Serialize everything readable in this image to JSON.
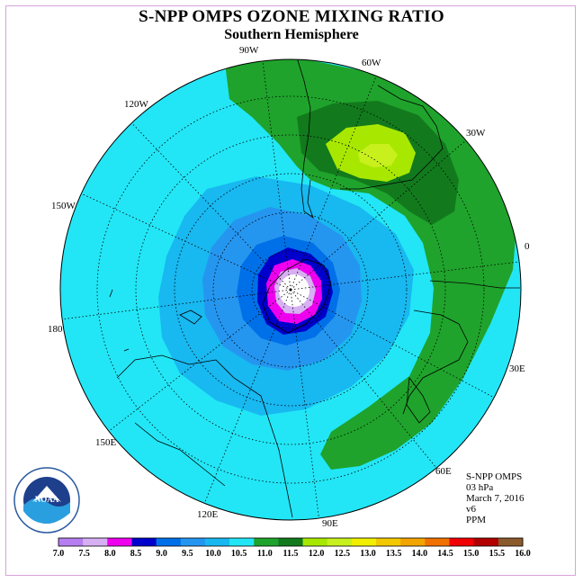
{
  "title": "S-NPP OMPS OZONE MIXING RATIO",
  "subtitle": "Southern Hemisphere",
  "meridian_labels": {
    "w90": "90W",
    "w60": "60W",
    "w30": "30W",
    "zero": "0",
    "e30": "30E",
    "e60": "60E",
    "e90": "90E",
    "e120": "120E",
    "e150": "150E",
    "d180": "180",
    "w150": "150W",
    "w120": "120W"
  },
  "info": {
    "product": "S-NPP OMPS",
    "level": "03 hPa",
    "date": "March 7, 2016",
    "version": "v6",
    "units": "PPM"
  },
  "logo": {
    "text": "NOAA",
    "ring_text": "NATIONAL OCEANIC AND ATMOSPHERIC ADMINISTRATION U.S. DEPARTMENT OF COMMERCE"
  },
  "colorbar": {
    "ticks": [
      "7.0",
      "7.5",
      "8.0",
      "8.5",
      "9.0",
      "9.5",
      "10.0",
      "10.5",
      "11.0",
      "11.5",
      "12.0",
      "12.5",
      "13.0",
      "13.5",
      "14.0",
      "14.5",
      "15.0",
      "15.5",
      "16.0"
    ],
    "colors": [
      "#b67ef0",
      "#d6b0f2",
      "#ee00ee",
      "#0000cc",
      "#0070e8",
      "#2596f0",
      "#18b8f0",
      "#22e6f6",
      "#1fa32c",
      "#127a1d",
      "#a8e800",
      "#c8f01c",
      "#f0f000",
      "#f2c800",
      "#f2a400",
      "#f07000",
      "#f00000",
      "#b20000",
      "#8b5a2b"
    ]
  }
}
